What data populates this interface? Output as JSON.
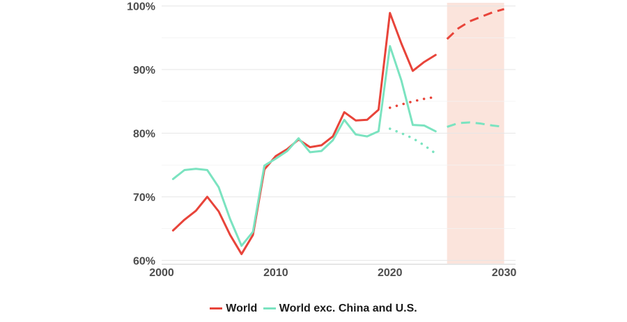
{
  "chart_data": {
    "type": "line",
    "title": "",
    "xlabel": "",
    "ylabel": "",
    "xlim": [
      2000,
      2031
    ],
    "ylim": [
      59.5,
      100.5
    ],
    "x_ticks": [
      2000,
      2010,
      2020,
      2030
    ],
    "y_ticks": [
      60,
      70,
      80,
      90,
      100
    ],
    "y_tick_labels": [
      "60%",
      "70%",
      "80%",
      "90%",
      "100%"
    ],
    "grid": true,
    "legend_position": "bottom",
    "projection_band": {
      "x_start": 2025,
      "x_end": 2030,
      "color": "#fbe4dc"
    },
    "series": [
      {
        "name": "World",
        "color": "#e8443a",
        "style": "solid",
        "points": [
          [
            2001,
            64.7
          ],
          [
            2002,
            66.4
          ],
          [
            2003,
            67.8
          ],
          [
            2004,
            70.0
          ],
          [
            2005,
            67.7
          ],
          [
            2006,
            64.0
          ],
          [
            2007,
            61.0
          ],
          [
            2008,
            64.0
          ],
          [
            2009,
            74.3
          ],
          [
            2010,
            76.4
          ],
          [
            2011,
            77.5
          ],
          [
            2012,
            79.0
          ],
          [
            2013,
            77.8
          ],
          [
            2014,
            78.1
          ],
          [
            2015,
            79.5
          ],
          [
            2016,
            83.3
          ],
          [
            2017,
            82.0
          ],
          [
            2018,
            82.1
          ],
          [
            2019,
            83.7
          ],
          [
            2020,
            98.9
          ],
          [
            2021,
            94.1
          ],
          [
            2022,
            89.8
          ],
          [
            2023,
            91.2
          ],
          [
            2024,
            92.3
          ]
        ]
      },
      {
        "name": "World exc. China and U.S.",
        "color": "#7be3c0",
        "style": "solid",
        "points": [
          [
            2001,
            72.8
          ],
          [
            2002,
            74.2
          ],
          [
            2003,
            74.4
          ],
          [
            2004,
            74.2
          ],
          [
            2005,
            71.5
          ],
          [
            2006,
            66.5
          ],
          [
            2007,
            62.3
          ],
          [
            2008,
            64.5
          ],
          [
            2009,
            74.9
          ],
          [
            2010,
            76.0
          ],
          [
            2011,
            77.2
          ],
          [
            2012,
            79.2
          ],
          [
            2013,
            77.0
          ],
          [
            2014,
            77.2
          ],
          [
            2015,
            78.9
          ],
          [
            2016,
            82.1
          ],
          [
            2017,
            79.8
          ],
          [
            2018,
            79.5
          ],
          [
            2019,
            80.3
          ],
          [
            2020,
            93.7
          ],
          [
            2021,
            88.3
          ],
          [
            2022,
            81.3
          ],
          [
            2023,
            81.2
          ],
          [
            2024,
            80.3
          ]
        ]
      },
      {
        "name": "",
        "color": "#e8443a",
        "style": "dotted",
        "points": [
          [
            2020,
            84.0
          ],
          [
            2021,
            84.5
          ],
          [
            2022,
            85.0
          ],
          [
            2023,
            85.4
          ],
          [
            2024,
            85.7
          ]
        ]
      },
      {
        "name": "",
        "color": "#7be3c0",
        "style": "dotted",
        "points": [
          [
            2020,
            80.7
          ],
          [
            2021,
            80.0
          ],
          [
            2022,
            79.2
          ],
          [
            2023,
            78.1
          ],
          [
            2024,
            76.8
          ]
        ]
      },
      {
        "name": "",
        "color": "#e8443a",
        "style": "dashed",
        "points": [
          [
            2025,
            94.8
          ],
          [
            2026,
            96.5
          ],
          [
            2027,
            97.6
          ],
          [
            2028,
            98.3
          ],
          [
            2029,
            99.0
          ],
          [
            2030,
            99.5
          ]
        ]
      },
      {
        "name": "",
        "color": "#7be3c0",
        "style": "dashed",
        "points": [
          [
            2025,
            81.0
          ],
          [
            2026,
            81.6
          ],
          [
            2027,
            81.7
          ],
          [
            2028,
            81.5
          ],
          [
            2029,
            81.2
          ],
          [
            2030,
            81.0
          ]
        ]
      }
    ]
  },
  "legend": {
    "items": [
      {
        "label": "World",
        "color": "#e8443a"
      },
      {
        "label": "World exc. China and U.S.",
        "color": "#7be3c0"
      }
    ]
  }
}
